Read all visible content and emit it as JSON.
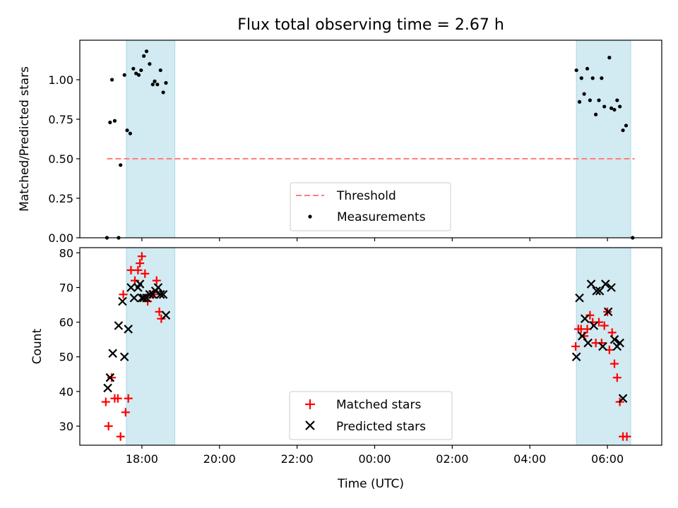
{
  "title": "Flux total observing time = 2.67 h",
  "x_axis": {
    "label": "Time (UTC)",
    "ticks": [
      {
        "t": -6.0,
        "label": "18:00"
      },
      {
        "t": -4.0,
        "label": "20:00"
      },
      {
        "t": -2.0,
        "label": "22:00"
      },
      {
        "t": 0.0,
        "label": "00:00"
      },
      {
        "t": 2.0,
        "label": "02:00"
      },
      {
        "t": 4.0,
        "label": "04:00"
      },
      {
        "t": 6.0,
        "label": "06:00"
      }
    ],
    "range_hours_from_midnight": [
      -7.6,
      7.4
    ]
  },
  "shaded_spans": [
    {
      "from": -6.4,
      "to": -5.15
    },
    {
      "from": 5.2,
      "to": 6.6
    }
  ],
  "shade_color": "#add8e6",
  "chart_data": [
    {
      "type": "scatter",
      "ylabel": "Matched/Predicted stars",
      "ylim": [
        0,
        1.25
      ],
      "yticks": [
        "0.00",
        "0.25",
        "0.50",
        "0.75",
        "1.00"
      ],
      "threshold": {
        "name": "Threshold",
        "value": 0.5,
        "from": -6.9,
        "to": 6.7,
        "color": "#ff7f7f"
      },
      "series": [
        {
          "name": "Measurements",
          "color": "#000000",
          "points": [
            [
              -6.9,
              0.0
            ],
            [
              -6.82,
              0.73
            ],
            [
              -6.77,
              1.0
            ],
            [
              -6.7,
              0.74
            ],
            [
              -6.6,
              0.0
            ],
            [
              -6.55,
              0.46
            ],
            [
              -6.45,
              1.03
            ],
            [
              -6.38,
              0.68
            ],
            [
              -6.3,
              0.66
            ],
            [
              -6.22,
              1.07
            ],
            [
              -6.15,
              1.04
            ],
            [
              -6.08,
              1.03
            ],
            [
              -6.02,
              1.06
            ],
            [
              -5.95,
              1.15
            ],
            [
              -5.88,
              1.18
            ],
            [
              -5.8,
              1.1
            ],
            [
              -5.72,
              0.97
            ],
            [
              -5.67,
              0.99
            ],
            [
              -5.6,
              0.97
            ],
            [
              -5.52,
              1.06
            ],
            [
              -5.45,
              0.92
            ],
            [
              -5.38,
              0.98
            ],
            [
              5.2,
              1.06
            ],
            [
              5.28,
              0.86
            ],
            [
              5.33,
              1.01
            ],
            [
              5.4,
              0.91
            ],
            [
              5.48,
              1.07
            ],
            [
              5.55,
              0.87
            ],
            [
              5.62,
              1.01
            ],
            [
              5.7,
              0.78
            ],
            [
              5.78,
              0.87
            ],
            [
              5.85,
              1.01
            ],
            [
              5.92,
              0.83
            ],
            [
              6.05,
              1.14
            ],
            [
              6.1,
              0.82
            ],
            [
              6.18,
              0.81
            ],
            [
              6.25,
              0.87
            ],
            [
              6.32,
              0.83
            ],
            [
              6.4,
              0.68
            ],
            [
              6.48,
              0.71
            ],
            [
              6.65,
              0.0
            ]
          ]
        }
      ],
      "legend": {
        "position": "lower center",
        "entries": [
          "Threshold",
          "Measurements"
        ]
      }
    },
    {
      "type": "scatter",
      "ylabel": "Count",
      "ylim": [
        24.5,
        81.5
      ],
      "yticks": [
        "30",
        "40",
        "50",
        "60",
        "70",
        "80"
      ],
      "series": [
        {
          "name": "Matched stars",
          "marker": "plus",
          "color": "#ff0000",
          "points": [
            [
              -6.93,
              37
            ],
            [
              -6.86,
              30
            ],
            [
              -6.78,
              44
            ],
            [
              -6.7,
              38
            ],
            [
              -6.62,
              38
            ],
            [
              -6.55,
              27
            ],
            [
              -6.48,
              68
            ],
            [
              -6.42,
              34
            ],
            [
              -6.35,
              38
            ],
            [
              -6.28,
              75
            ],
            [
              -6.18,
              72
            ],
            [
              -6.1,
              75
            ],
            [
              -6.05,
              77
            ],
            [
              -6.0,
              79
            ],
            [
              -5.92,
              74
            ],
            [
              -5.85,
              66
            ],
            [
              -5.78,
              68
            ],
            [
              -5.7,
              68
            ],
            [
              -5.62,
              72
            ],
            [
              -5.55,
              63
            ],
            [
              -5.5,
              61
            ],
            [
              5.18,
              53
            ],
            [
              5.25,
              58
            ],
            [
              5.32,
              58
            ],
            [
              5.4,
              56
            ],
            [
              5.48,
              58
            ],
            [
              5.55,
              62
            ],
            [
              5.62,
              60
            ],
            [
              5.7,
              54
            ],
            [
              5.78,
              60
            ],
            [
              5.85,
              54
            ],
            [
              5.92,
              59
            ],
            [
              6.0,
              63
            ],
            [
              6.05,
              52
            ],
            [
              6.12,
              57
            ],
            [
              6.18,
              48
            ],
            [
              6.25,
              44
            ],
            [
              6.32,
              37
            ],
            [
              6.4,
              27
            ],
            [
              6.5,
              27
            ]
          ]
        },
        {
          "name": "Predicted stars",
          "marker": "x",
          "color": "#000000",
          "points": [
            [
              -6.88,
              41
            ],
            [
              -6.82,
              44
            ],
            [
              -6.75,
              51
            ],
            [
              -6.6,
              59
            ],
            [
              -6.5,
              66
            ],
            [
              -6.45,
              50
            ],
            [
              -6.35,
              58
            ],
            [
              -6.28,
              70
            ],
            [
              -6.2,
              67
            ],
            [
              -6.1,
              70
            ],
            [
              -6.05,
              71
            ],
            [
              -6.0,
              67
            ],
            [
              -5.95,
              67
            ],
            [
              -5.88,
              67
            ],
            [
              -5.8,
              68
            ],
            [
              -5.72,
              68
            ],
            [
              -5.65,
              69
            ],
            [
              -5.58,
              70
            ],
            [
              -5.52,
              68
            ],
            [
              -5.45,
              68
            ],
            [
              -5.38,
              62
            ],
            [
              5.2,
              50
            ],
            [
              5.28,
              67
            ],
            [
              5.35,
              56
            ],
            [
              5.42,
              61
            ],
            [
              5.5,
              54
            ],
            [
              5.58,
              71
            ],
            [
              5.65,
              59
            ],
            [
              5.72,
              69
            ],
            [
              5.8,
              69
            ],
            [
              5.88,
              53
            ],
            [
              5.95,
              71
            ],
            [
              6.02,
              63
            ],
            [
              6.1,
              70
            ],
            [
              6.18,
              55
            ],
            [
              6.25,
              53
            ],
            [
              6.32,
              54
            ],
            [
              6.4,
              38
            ]
          ]
        }
      ],
      "legend": {
        "position": "lower center",
        "entries": [
          "Matched stars",
          "Predicted stars"
        ]
      }
    }
  ]
}
